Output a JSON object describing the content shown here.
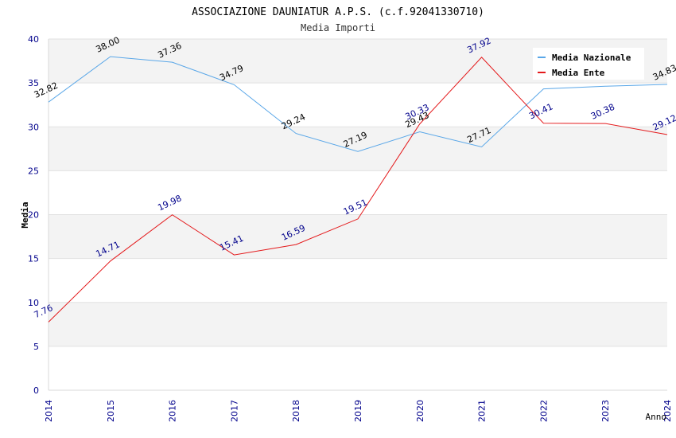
{
  "chart_data": {
    "type": "line",
    "title": "ASSOCIAZIONE DAUNIATUR A.P.S. (c.f.92041330710)",
    "subtitle": "Media Importi",
    "xlabel": "Anno",
    "ylabel": "Media",
    "ylim": [
      0,
      40
    ],
    "yticks": [
      0,
      5,
      10,
      15,
      20,
      25,
      30,
      35,
      40
    ],
    "categories": [
      "2014",
      "2015",
      "2016",
      "2017",
      "2018",
      "2019",
      "2020",
      "2021",
      "2022",
      "2023",
      "2024"
    ],
    "grid": "horizontal bands",
    "legend_position": "top-right",
    "series": [
      {
        "name": "Media Nazionale",
        "color": "#5aa7e8",
        "label_color": "#000000",
        "values": [
          32.82,
          38.0,
          37.36,
          34.79,
          29.24,
          27.19,
          29.43,
          27.71,
          34.32,
          34.62,
          34.83
        ],
        "labels": [
          "32.82",
          "38.00",
          "37.36",
          "34.79",
          "29.24",
          "27.19",
          "29.43",
          "27.71",
          "",
          "",
          "34.83"
        ]
      },
      {
        "name": "Media Ente",
        "color": "#e41a1c",
        "label_color": "#00008b",
        "values": [
          7.76,
          14.71,
          19.98,
          15.41,
          16.59,
          19.51,
          30.33,
          37.92,
          30.41,
          30.38,
          29.12
        ],
        "labels": [
          "7.76",
          "14.71",
          "19.98",
          "15.41",
          "16.59",
          "19.51",
          "30.33",
          "37.92",
          "30.41",
          "30.38",
          "29.12"
        ]
      }
    ]
  }
}
